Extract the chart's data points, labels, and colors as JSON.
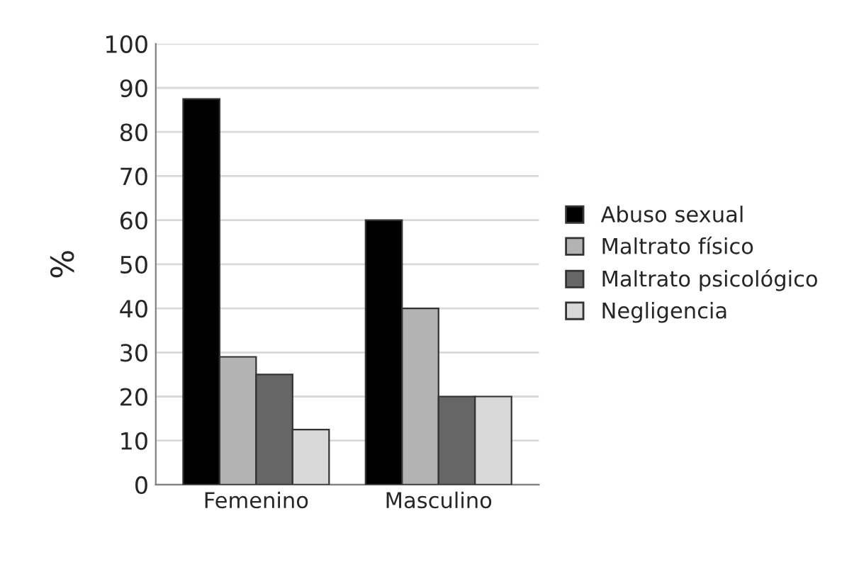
{
  "chart_data": {
    "type": "bar",
    "ylabel": "%",
    "categories": [
      "Femenino",
      "Masculino"
    ],
    "series": [
      {
        "name": "Abuso sexual",
        "color": "#000000",
        "values": [
          87.5,
          60
        ]
      },
      {
        "name": "Maltrato físico",
        "color": "#b3b3b3",
        "values": [
          29,
          40
        ]
      },
      {
        "name": "Maltrato psicológico",
        "color": "#666666",
        "values": [
          25,
          20
        ]
      },
      {
        "name": "Negligencia",
        "color": "#d9d9d9",
        "values": [
          12.5,
          20
        ]
      }
    ],
    "ylim": [
      0,
      100
    ],
    "yticks": [
      0,
      10,
      20,
      30,
      40,
      50,
      60,
      70,
      80,
      90,
      100
    ],
    "grid": "y",
    "legend": "right"
  }
}
